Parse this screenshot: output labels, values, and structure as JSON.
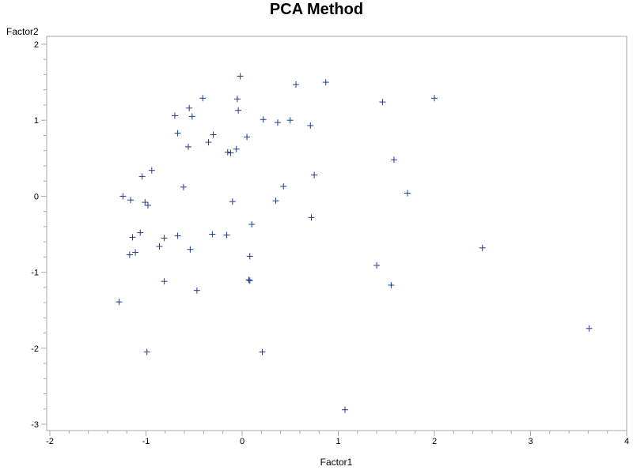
{
  "chart_data": {
    "type": "scatter",
    "title": "PCA Method",
    "xlabel": "Factor1",
    "ylabel": "Factor2",
    "xlim": [
      -2,
      4
    ],
    "ylim": [
      -3,
      2
    ],
    "x_ticks": [
      "-2",
      "-1",
      "0",
      "1",
      "2",
      "3",
      "4"
    ],
    "y_ticks": [
      "-3",
      "-2",
      "-1",
      "0",
      "1",
      "2"
    ],
    "grid": false,
    "legend": "none",
    "marker": "plus",
    "marker_color": "#1f3a8a",
    "points": [
      {
        "x": -0.02,
        "y": 1.58
      },
      {
        "x": 0.56,
        "y": 1.47
      },
      {
        "x": 0.87,
        "y": 1.5
      },
      {
        "x": 2.0,
        "y": 1.29
      },
      {
        "x": 1.46,
        "y": 1.24
      },
      {
        "x": -0.41,
        "y": 1.29
      },
      {
        "x": -0.55,
        "y": 1.16
      },
      {
        "x": -0.05,
        "y": 1.28
      },
      {
        "x": -0.04,
        "y": 1.13
      },
      {
        "x": -0.7,
        "y": 1.06
      },
      {
        "x": -0.52,
        "y": 1.05
      },
      {
        "x": 0.22,
        "y": 1.01
      },
      {
        "x": 0.37,
        "y": 0.97
      },
      {
        "x": 0.5,
        "y": 1.0
      },
      {
        "x": 0.71,
        "y": 0.93
      },
      {
        "x": -0.67,
        "y": 0.83
      },
      {
        "x": -0.3,
        "y": 0.81
      },
      {
        "x": -0.35,
        "y": 0.71
      },
      {
        "x": -0.56,
        "y": 0.65
      },
      {
        "x": 0.05,
        "y": 0.78
      },
      {
        "x": -0.06,
        "y": 0.62
      },
      {
        "x": -0.15,
        "y": 0.58
      },
      {
        "x": -0.12,
        "y": 0.57
      },
      {
        "x": 1.58,
        "y": 0.48
      },
      {
        "x": 0.75,
        "y": 0.28
      },
      {
        "x": -0.94,
        "y": 0.34
      },
      {
        "x": -1.04,
        "y": 0.26
      },
      {
        "x": -0.61,
        "y": 0.12
      },
      {
        "x": 0.43,
        "y": 0.13
      },
      {
        "x": 1.72,
        "y": 0.04
      },
      {
        "x": -1.24,
        "y": 0.0
      },
      {
        "x": -1.16,
        "y": -0.05
      },
      {
        "x": -1.01,
        "y": -0.08
      },
      {
        "x": -0.98,
        "y": -0.12
      },
      {
        "x": -0.1,
        "y": -0.07
      },
      {
        "x": 0.35,
        "y": -0.06
      },
      {
        "x": 0.72,
        "y": -0.28
      },
      {
        "x": 0.1,
        "y": -0.37
      },
      {
        "x": -1.06,
        "y": -0.48
      },
      {
        "x": -1.14,
        "y": -0.54
      },
      {
        "x": -0.81,
        "y": -0.55
      },
      {
        "x": -0.67,
        "y": -0.52
      },
      {
        "x": -0.31,
        "y": -0.5
      },
      {
        "x": -0.16,
        "y": -0.51
      },
      {
        "x": -0.86,
        "y": -0.66
      },
      {
        "x": -0.54,
        "y": -0.7
      },
      {
        "x": -1.11,
        "y": -0.74
      },
      {
        "x": -1.17,
        "y": -0.77
      },
      {
        "x": 0.08,
        "y": -0.79
      },
      {
        "x": 2.5,
        "y": -0.68
      },
      {
        "x": 1.4,
        "y": -0.91
      },
      {
        "x": -0.81,
        "y": -1.12
      },
      {
        "x": 0.07,
        "y": -1.1
      },
      {
        "x": 0.08,
        "y": -1.11
      },
      {
        "x": 1.55,
        "y": -1.17
      },
      {
        "x": -0.47,
        "y": -1.24
      },
      {
        "x": -1.28,
        "y": -1.39
      },
      {
        "x": 3.61,
        "y": -1.74
      },
      {
        "x": -0.99,
        "y": -2.05
      },
      {
        "x": 0.21,
        "y": -2.05
      },
      {
        "x": 1.07,
        "y": -2.81
      }
    ]
  }
}
